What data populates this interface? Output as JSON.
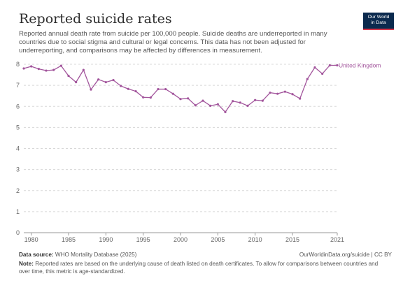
{
  "header": {
    "title": "Reported suicide rates",
    "subtitle": "Reported annual death rate from suicide per 100,000 people. Suicide deaths are underreported in many countries due to social stigma and cultural or legal concerns. This data has not been adjusted for underreporting, and comparisons may be affected by differences in measurement.",
    "logo_line1": "Our World",
    "logo_line2": "in Data"
  },
  "footer": {
    "source_label": "Data source:",
    "source_text": "WHO Mortality Database (2025)",
    "credit": "OurWorldinData.org/suicide | CC BY",
    "note_label": "Note:",
    "note_text": "Reported rates are based on the underlying cause of death listed on death certificates. To allow for comparisons between countries and over time, this metric is age-standardized."
  },
  "colors": {
    "series": "#a2559c",
    "grid": "#d8d8d8",
    "axis": "#666666"
  },
  "chart_data": {
    "type": "line",
    "title": "Reported suicide rates",
    "xlim": [
      1979,
      2021
    ],
    "ylim": [
      0,
      8
    ],
    "yticks": [
      0,
      1,
      2,
      3,
      4,
      5,
      6,
      7,
      8
    ],
    "xticks": [
      1980,
      1985,
      1990,
      1995,
      2000,
      2005,
      2010,
      2015,
      2021
    ],
    "grid": "horizontal-dashed",
    "series": [
      {
        "name": "United Kingdom",
        "x": [
          1979,
          1980,
          1981,
          1982,
          1983,
          1984,
          1985,
          1986,
          1987,
          1988,
          1989,
          1990,
          1991,
          1992,
          1993,
          1994,
          1995,
          1996,
          1997,
          1998,
          1999,
          2000,
          2001,
          2002,
          2003,
          2004,
          2005,
          2006,
          2007,
          2008,
          2009,
          2010,
          2011,
          2012,
          2013,
          2014,
          2015,
          2016,
          2017,
          2018,
          2019,
          2020,
          2021
        ],
        "values": [
          7.8,
          7.9,
          7.78,
          7.7,
          7.73,
          7.93,
          7.45,
          7.15,
          7.73,
          6.8,
          7.28,
          7.15,
          7.25,
          6.97,
          6.83,
          6.72,
          6.43,
          6.42,
          6.82,
          6.82,
          6.6,
          6.35,
          6.38,
          6.05,
          6.27,
          6.03,
          6.1,
          5.73,
          6.25,
          6.18,
          6.03,
          6.3,
          6.27,
          6.65,
          6.6,
          6.7,
          6.58,
          6.37,
          7.3,
          7.85,
          7.55,
          7.95,
          7.95
        ]
      }
    ]
  }
}
